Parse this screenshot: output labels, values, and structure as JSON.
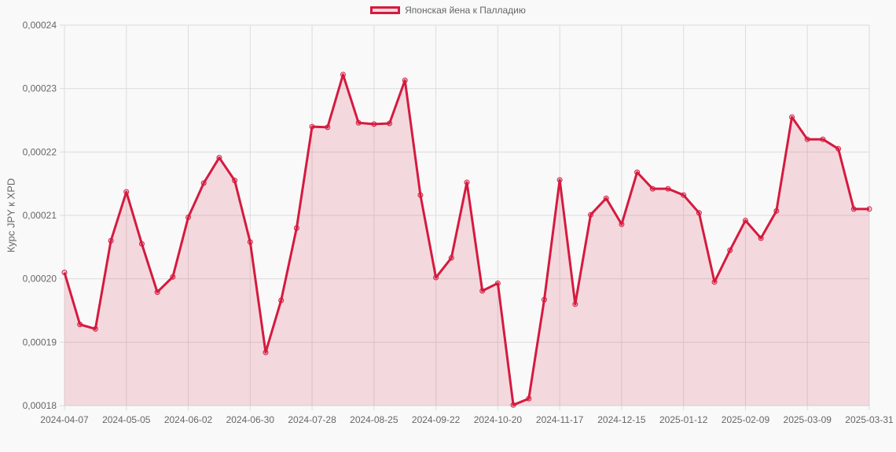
{
  "legend": {
    "label": "Японская йена к Палладию",
    "color": "#d51a3f"
  },
  "axis": {
    "ylabel": "Курс JPY к XPD"
  },
  "chart_data": {
    "type": "line",
    "title": "",
    "legend_position": "top",
    "xlabel": "",
    "ylabel": "Курс JPY к XPD",
    "ylim": [
      0.00018,
      0.00024
    ],
    "yticks": [
      "0,00018",
      "0,00019",
      "0,00020",
      "0,00021",
      "0,00022",
      "0,00023",
      "0,00024"
    ],
    "xtick_labels": [
      "2024-04-07",
      "2024-05-05",
      "2024-06-02",
      "2024-06-30",
      "2024-07-28",
      "2024-08-25",
      "2024-09-22",
      "2024-10-20",
      "2024-11-17",
      "2024-12-15",
      "2025-01-12",
      "2025-02-09",
      "2025-03-09",
      "2025-03-31"
    ],
    "grid": true,
    "fill": true,
    "series": [
      {
        "name": "Японская йена к Палладию",
        "color": "#d51a3f",
        "values": [
          0.000201,
          0.0001928,
          0.0001921,
          0.000206,
          0.0002137,
          0.0002055,
          0.0001979,
          0.0002003,
          0.0002097,
          0.0002151,
          0.0002191,
          0.0002155,
          0.0002058,
          0.0001884,
          0.0001966,
          0.000208,
          0.000224,
          0.0002239,
          0.0002322,
          0.0002246,
          0.0002244,
          0.0002245,
          0.0002313,
          0.0002132,
          0.0002002,
          0.0002033,
          0.0002152,
          0.0001981,
          0.0001993,
          0.0001801,
          0.0001811,
          0.0001967,
          0.0002156,
          0.000196,
          0.0002101,
          0.0002127,
          0.0002086,
          0.0002168,
          0.0002142,
          0.0002142,
          0.0002132,
          0.0002104,
          0.0001995,
          0.0002045,
          0.0002092,
          0.0002064,
          0.0002107,
          0.0002255,
          0.000222,
          0.000222,
          0.0002205,
          0.000211,
          0.000211
        ]
      }
    ]
  }
}
